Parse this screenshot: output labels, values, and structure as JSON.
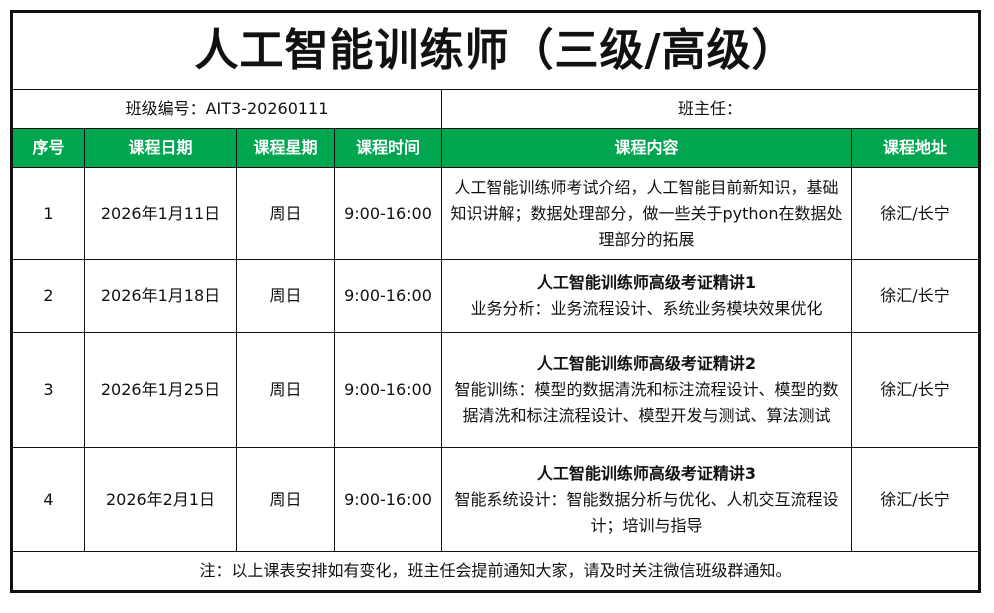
{
  "title": "人工智能训练师（三级/高级）",
  "info": {
    "class_code": "班级编号：AIT3-20260111",
    "head_teacher": "班主任："
  },
  "header_color": "#00a550",
  "columns": [
    "序号",
    "课程日期",
    "课程星期",
    "课程时间",
    "课程内容",
    "课程地址"
  ],
  "rows": [
    {
      "no": "1",
      "date": "2026年1月11日",
      "weekday": "周日",
      "time": "9:00-16:00",
      "content_title": "",
      "content": "人工智能训练师考试介绍，人工智能目前新知识，基础知识讲解；数据处理部分，做一些关于python在数据处理部分的拓展",
      "address": "徐汇/长宁"
    },
    {
      "no": "2",
      "date": "2026年1月18日",
      "weekday": "周日",
      "time": "9:00-16:00",
      "content_title": "人工智能训练师高级考证精讲1",
      "content": "业务分析：业务流程设计、系统业务模块效果优化",
      "address": "徐汇/长宁"
    },
    {
      "no": "3",
      "date": "2026年1月25日",
      "weekday": "周日",
      "time": "9:00-16:00",
      "content_title": "人工智能训练师高级考证精讲2",
      "content": "智能训练：模型的数据清洗和标注流程设计、模型的数据清洗和标注流程设计、模型开发与测试、算法测试",
      "address": "徐汇/长宁"
    },
    {
      "no": "4",
      "date": "2026年2月1日",
      "weekday": "周日",
      "time": "9:00-16:00",
      "content_title": "人工智能训练师高级考证精讲3",
      "content": "智能系统设计：智能数据分析与优化、人机交互流程设计；培训与指导",
      "address": "徐汇/长宁"
    }
  ],
  "footer": "注：以上课表安排如有变化，班主任会提前通知大家，请及时关注微信班级群通知。"
}
